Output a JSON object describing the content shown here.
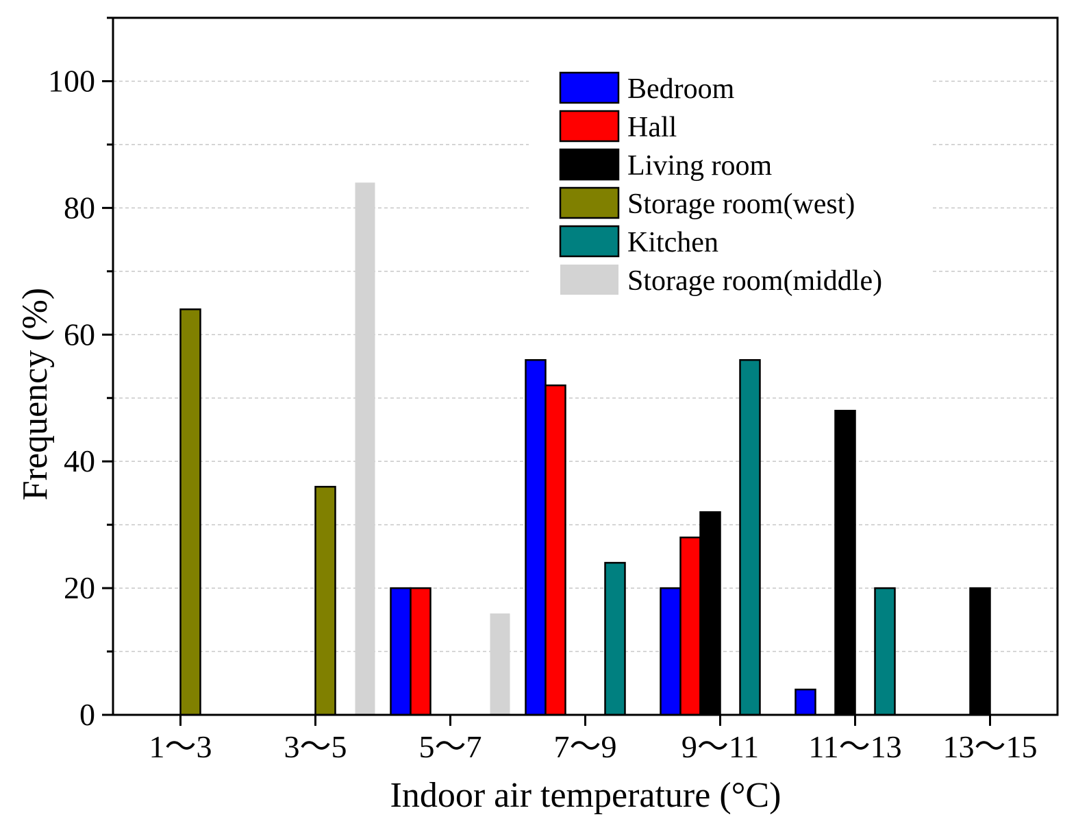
{
  "chart_data": {
    "type": "bar",
    "title": "",
    "xlabel": "Indoor air temperature (°C)",
    "ylabel": "Frequency (%)",
    "ylim": [
      0,
      110
    ],
    "yticks": [
      0,
      20,
      40,
      60,
      80,
      100
    ],
    "ytick_labels": [
      "0",
      "20",
      "40",
      "60",
      "80",
      "100"
    ],
    "grid": true,
    "legend_position": "top-right",
    "categories": [
      "1～3",
      "3～5",
      "5～7",
      "7～9",
      "9～11",
      "11～13",
      "13～15"
    ],
    "series": [
      {
        "name": "Bedroom",
        "color": "#0000ff",
        "values": [
          0,
          0,
          20,
          56,
          20,
          4,
          0
        ]
      },
      {
        "name": "Hall",
        "color": "#ff0000",
        "values": [
          0,
          0,
          20,
          52,
          28,
          0,
          0
        ]
      },
      {
        "name": "Living room",
        "color": "#000000",
        "values": [
          0,
          0,
          0,
          0,
          32,
          48,
          20
        ]
      },
      {
        "name": "Storage room(west)",
        "color": "#808000",
        "values": [
          64,
          36,
          0,
          0,
          0,
          0,
          0
        ]
      },
      {
        "name": "Kitchen",
        "color": "#008080",
        "values": [
          0,
          0,
          0,
          24,
          56,
          20,
          0
        ]
      },
      {
        "name": "Storage room(middle)",
        "color": "#d3d3d3",
        "values": [
          0,
          84,
          16,
          0,
          0,
          0,
          0
        ]
      }
    ]
  }
}
